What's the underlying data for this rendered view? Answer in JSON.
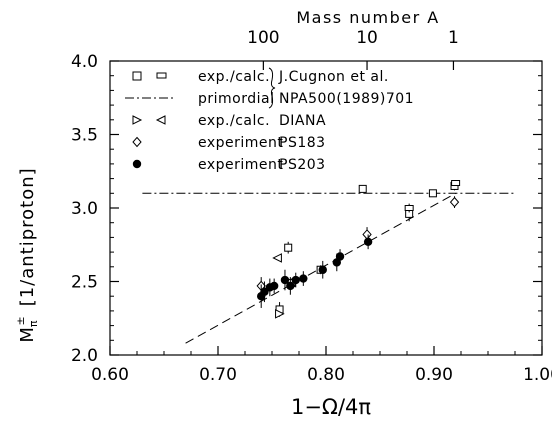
{
  "chart_data": {
    "type": "scatter",
    "xlabel": "1−Ω/4π",
    "ylabel_main": "M",
    "ylabel_sub": "π",
    "ylabel_sup": "±",
    "ylabel_unit": "[1/antiproton]",
    "top_axis_label": "Mass number A",
    "xlim": [
      0.6,
      1.0
    ],
    "ylim": [
      2.0,
      4.0
    ],
    "x_ticks": [
      "0.60",
      "0.70",
      "0.80",
      "0.90",
      "1.00"
    ],
    "y_ticks": [
      "2.0",
      "2.5",
      "3.0",
      "3.5",
      "4.0"
    ],
    "top_ticks": [
      {
        "label": "100",
        "x": 0.742
      },
      {
        "label": "10",
        "x": 0.838
      },
      {
        "label": "1",
        "x": 0.918
      }
    ],
    "legend": {
      "entries": [
        {
          "marker": "squares",
          "label": "exp./calc."
        },
        {
          "marker": "dashdot",
          "label": "primordial"
        },
        {
          "marker": "triangles",
          "label": "exp./calc."
        },
        {
          "marker": "diamond",
          "label": "experiment"
        },
        {
          "marker": "filled-circle",
          "label": "experiment"
        }
      ],
      "sources": [
        "J.Cugnon et al.",
        "NPA500(1989)701",
        "DIANA",
        "PS183",
        "PS203"
      ]
    },
    "series": [
      {
        "name": "exp.",
        "marker": "square",
        "points": [
          [
            0.834,
            3.13,
            0.02
          ],
          [
            0.899,
            3.1,
            0.02
          ],
          [
            0.919,
            3.15,
            0.03
          ],
          [
            0.877,
            2.96,
            0.05
          ],
          [
            0.795,
            2.58,
            0.03
          ],
          [
            0.768,
            2.49,
            0.03
          ],
          [
            0.765,
            2.73,
            0.04
          ],
          [
            0.757,
            2.31,
            0.05
          ]
        ]
      },
      {
        "name": "calc.",
        "marker": "rect",
        "points": [
          [
            0.877,
            3.0,
            0.03
          ],
          [
            0.92,
            3.17,
            0.02
          ]
        ]
      },
      {
        "name": "primordial",
        "marker": "dashdot-line",
        "points": [
          [
            0.63,
            3.1
          ],
          [
            0.975,
            3.1
          ]
        ]
      },
      {
        "name": "PS183",
        "marker": "diamond",
        "points": [
          [
            0.919,
            3.04,
            0.04
          ],
          [
            0.838,
            2.82,
            0.05
          ],
          [
            0.74,
            2.47,
            0.06
          ]
        ]
      },
      {
        "name": "PS203",
        "marker": "filled-circle",
        "points": [
          [
            0.74,
            2.4,
            0.08
          ],
          [
            0.743,
            2.43,
            0.07
          ],
          [
            0.748,
            2.46,
            0.06
          ],
          [
            0.752,
            2.47,
            0.05
          ],
          [
            0.762,
            2.51,
            0.07
          ],
          [
            0.767,
            2.47,
            0.06
          ],
          [
            0.772,
            2.51,
            0.05
          ],
          [
            0.779,
            2.52,
            0.05
          ],
          [
            0.797,
            2.58,
            0.06
          ],
          [
            0.81,
            2.63,
            0.06
          ],
          [
            0.813,
            2.67,
            0.05
          ],
          [
            0.839,
            2.77,
            0.05
          ]
        ]
      }
    ],
    "triangle_points": [
      {
        "x": 0.755,
        "y": 2.66,
        "dir": "left"
      },
      {
        "x": 0.757,
        "y": 2.28,
        "dir": "right"
      }
    ],
    "fit_line": [
      [
        0.67,
        2.08
      ],
      [
        0.92,
        3.1
      ]
    ]
  }
}
